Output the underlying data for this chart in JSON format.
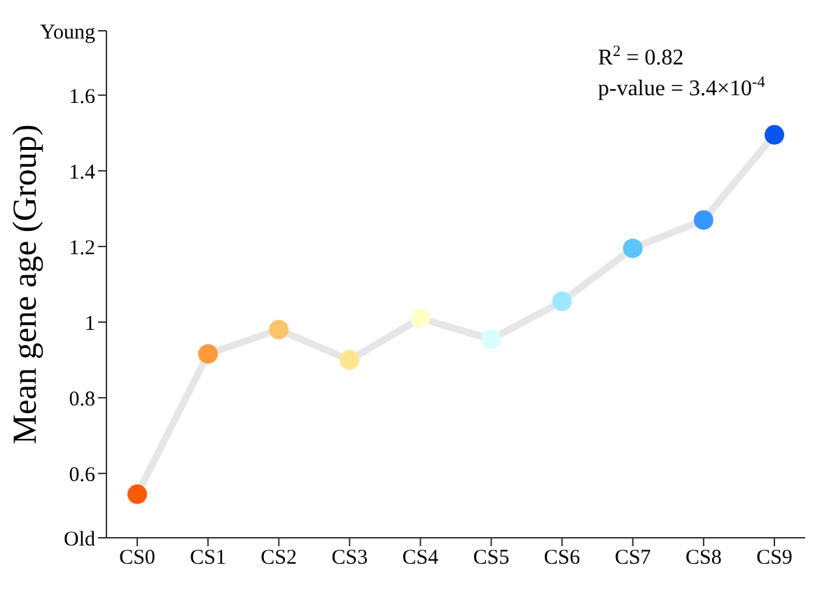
{
  "chart_data": {
    "type": "line",
    "ylabel": "Mean gene age (Group)",
    "categories": [
      "CS0",
      "CS1",
      "CS2",
      "CS3",
      "CS4",
      "CS5",
      "CS6",
      "CS7",
      "CS8",
      "CS9"
    ],
    "series": [
      {
        "color": "#e6e6e6",
        "values": [
          0.545,
          0.916,
          0.98,
          0.9,
          1.01,
          0.955,
          1.055,
          1.195,
          1.27,
          1.495
        ],
        "colors": [
          "#ff5a0a",
          "#ff9a3c",
          "#ffc46a",
          "#ffe68c",
          "#ffffc8",
          "#d8ffff",
          "#9ee8ff",
          "#5cc4ff",
          "#3a96ff",
          "#0a55f0"
        ]
      }
    ],
    "ylim": [
      0.43,
      1.77
    ],
    "yticks": [
      {
        "value": 0.43,
        "label": "Old"
      },
      0.6,
      0.8,
      1,
      1.2,
      1.4,
      1.6,
      {
        "value": 1.77,
        "label": "Young"
      }
    ],
    "annotations": [
      "R$^{2}$ = 0.82",
      "p-value = 3.4×10$^{-4}$"
    ],
    "marker": "circle",
    "line_style": "solid",
    "grid": false,
    "legend": false
  }
}
